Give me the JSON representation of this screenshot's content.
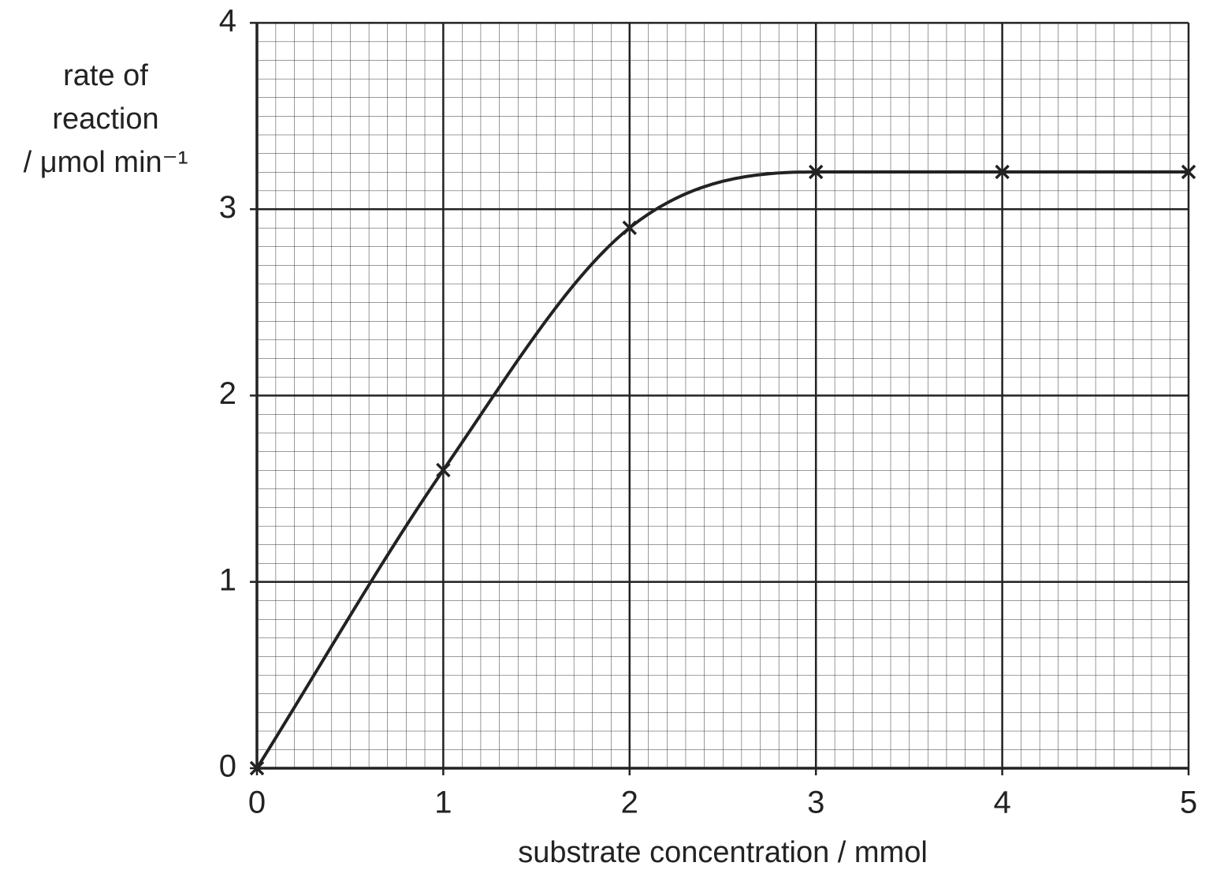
{
  "chart_data": {
    "type": "line",
    "ylabel": [
      "rate of",
      "reaction",
      "/ μmol min⁻¹"
    ],
    "xlabel": "substrate concentration / mmol",
    "x": [
      0,
      1,
      2,
      3,
      4,
      5
    ],
    "values": [
      0,
      1.6,
      2.9,
      3.2,
      3.2,
      3.2
    ],
    "color": "#222222",
    "marker": "x",
    "xlim": [
      0,
      5
    ],
    "xticks": [
      0,
      1,
      2,
      3,
      4,
      5
    ],
    "ylim": [
      0,
      4
    ],
    "yticks": [
      0,
      1,
      2,
      3,
      4
    ],
    "grid": true
  }
}
